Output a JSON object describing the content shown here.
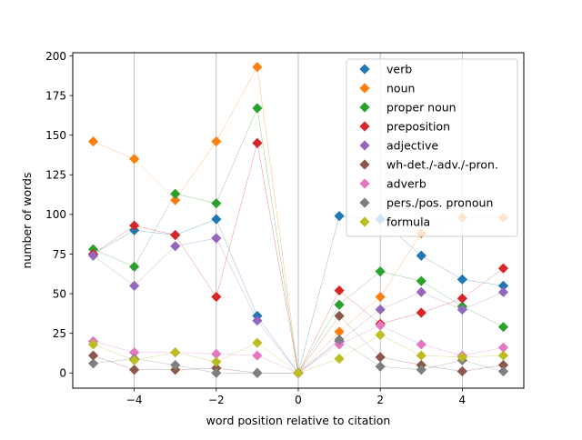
{
  "chart_data": {
    "type": "scatter",
    "xlabel": "word position relative to citation",
    "ylabel": "number of words",
    "xlim": [
      -5.5,
      5.5
    ],
    "ylim": [
      -9.6,
      202
    ],
    "x_ticks": [
      -4,
      -2,
      0,
      2,
      4
    ],
    "x_tick_labels": [
      "−4",
      "−2",
      "0",
      "2",
      "4"
    ],
    "y_ticks": [
      0,
      25,
      50,
      75,
      100,
      125,
      150,
      175,
      200
    ],
    "y_tick_labels": [
      "0",
      "25",
      "50",
      "75",
      "100",
      "125",
      "150",
      "175",
      "200"
    ],
    "grid": "vertical lines at even x positions",
    "legend_position": "upper right",
    "x": [
      -5,
      -4,
      -3,
      -2,
      -1,
      0,
      1,
      2,
      3,
      4,
      5
    ],
    "series": [
      {
        "name": "verb",
        "color": "#1f77b4",
        "values": [
          75,
          90,
          87,
          97,
          36,
          0,
          99,
          97,
          74,
          59,
          55
        ]
      },
      {
        "name": "noun",
        "color": "#ff7f0e",
        "values": [
          146,
          135,
          109,
          146,
          193,
          0,
          26,
          48,
          88,
          98,
          98
        ]
      },
      {
        "name": "proper noun",
        "color": "#2ca02c",
        "values": [
          78,
          67,
          113,
          107,
          167,
          0,
          43,
          64,
          58,
          42,
          29
        ]
      },
      {
        "name": "preposition",
        "color": "#d62728",
        "values": [
          75,
          93,
          87,
          48,
          145,
          0,
          52,
          31,
          38,
          47,
          66
        ]
      },
      {
        "name": "adjective",
        "color": "#9467bd",
        "values": [
          74,
          55,
          80,
          85,
          33,
          0,
          20,
          40,
          51,
          40,
          51
        ]
      },
      {
        "name": "wh-det./-adv./-pron.",
        "color": "#8c564b",
        "values": [
          11,
          2,
          2,
          3,
          0,
          0,
          36,
          10,
          5,
          1,
          5
        ]
      },
      {
        "name": "adverb",
        "color": "#e377c2",
        "values": [
          20,
          13,
          13,
          12,
          11,
          0,
          18,
          30,
          18,
          11,
          16
        ]
      },
      {
        "name": "pers./pos. pronoun",
        "color": "#7f7f7f",
        "values": [
          6,
          9,
          5,
          0,
          0,
          0,
          21,
          4,
          2,
          8,
          1
        ]
      },
      {
        "name": "formula",
        "color": "#bcbd22",
        "values": [
          18,
          8,
          13,
          7,
          19,
          0,
          9,
          24,
          11,
          10,
          11
        ]
      }
    ]
  }
}
